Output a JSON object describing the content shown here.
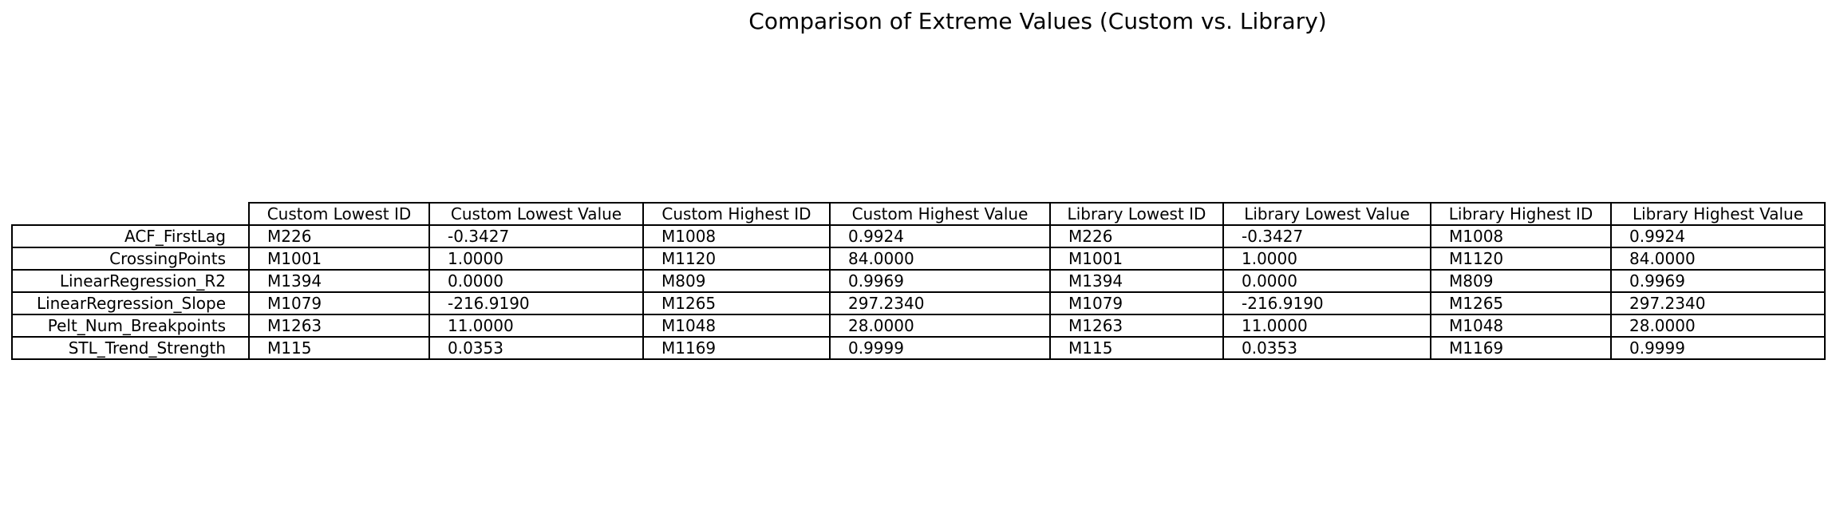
{
  "chart_data": {
    "type": "table",
    "title": "Comparison of Extreme Values (Custom vs. Library)",
    "columns": [
      "Custom Lowest ID",
      "Custom Lowest Value",
      "Custom Highest ID",
      "Custom Highest Value",
      "Library Lowest ID",
      "Library Lowest Value",
      "Library Highest ID",
      "Library Highest Value"
    ],
    "rows": [
      {
        "label": "ACF_FirstLag",
        "cells": [
          "M226",
          "-0.3427",
          "M1008",
          "0.9924",
          "M226",
          "-0.3427",
          "M1008",
          "0.9924"
        ]
      },
      {
        "label": "CrossingPoints",
        "cells": [
          "M1001",
          "1.0000",
          "M1120",
          "84.0000",
          "M1001",
          "1.0000",
          "M1120",
          "84.0000"
        ]
      },
      {
        "label": "LinearRegression_R2",
        "cells": [
          "M1394",
          "0.0000",
          "M809",
          "0.9969",
          "M1394",
          "0.0000",
          "M809",
          "0.9969"
        ]
      },
      {
        "label": "LinearRegression_Slope",
        "cells": [
          "M1079",
          "-216.9190",
          "M1265",
          "297.2340",
          "M1079",
          "-216.9190",
          "M1265",
          "297.2340"
        ]
      },
      {
        "label": "Pelt_Num_Breakpoints",
        "cells": [
          "M1263",
          "11.0000",
          "M1048",
          "28.0000",
          "M1263",
          "11.0000",
          "M1048",
          "28.0000"
        ]
      },
      {
        "label": "STL_Trend_Strength",
        "cells": [
          "M115",
          "0.0353",
          "M1169",
          "0.9999",
          "M115",
          "0.0353",
          "M1169",
          "0.9999"
        ]
      }
    ]
  }
}
